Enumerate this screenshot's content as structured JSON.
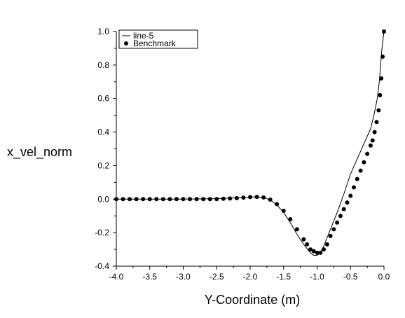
{
  "chart_data": {
    "type": "line",
    "xlabel": "Y-Coordinate (m)",
    "ylabel": "x_vel_norm",
    "xlim": [
      -4.0,
      0.0
    ],
    "ylim": [
      -0.4,
      1.0
    ],
    "xticks": [
      -4.0,
      -3.5,
      -3.0,
      -2.5,
      -2.0,
      -1.5,
      -1.0,
      -0.5,
      0.0
    ],
    "xtick_labels": [
      "-4.0",
      "-3.5",
      "-3.0",
      "-2.5",
      "-2.0",
      "-1.5",
      "-1.0",
      "-0.5",
      "0.0"
    ],
    "yticks": [
      -0.4,
      -0.2,
      0.0,
      0.2,
      0.4,
      0.6,
      0.8,
      1.0
    ],
    "ytick_labels": [
      "-0.4",
      "-0.2",
      "0.0",
      "0.2",
      "0.4",
      "0.6",
      "0.8",
      "1.0"
    ],
    "grid": false,
    "legend_position": "top-left",
    "series": [
      {
        "name": "line-5",
        "kind": "line",
        "color": "#000000",
        "x": [
          -4.0,
          -3.5,
          -3.0,
          -2.5,
          -2.2,
          -2.0,
          -1.9,
          -1.8,
          -1.7,
          -1.6,
          -1.5,
          -1.4,
          -1.3,
          -1.2,
          -1.1,
          -1.05,
          -1.0,
          -0.95,
          -0.9,
          -0.8,
          -0.7,
          -0.6,
          -0.5,
          -0.4,
          -0.3,
          -0.2,
          -0.15,
          -0.1,
          -0.07,
          -0.05,
          -0.03,
          0.0
        ],
        "y": [
          0.0,
          0.0,
          0.0,
          0.003,
          0.008,
          0.012,
          0.013,
          0.01,
          -0.005,
          -0.035,
          -0.08,
          -0.14,
          -0.21,
          -0.27,
          -0.32,
          -0.335,
          -0.335,
          -0.32,
          -0.28,
          -0.18,
          -0.08,
          0.03,
          0.15,
          0.24,
          0.33,
          0.42,
          0.5,
          0.6,
          0.7,
          0.8,
          0.9,
          1.0
        ]
      },
      {
        "name": "Benchmark",
        "kind": "scatter",
        "color": "#000000",
        "x": [
          -4.0,
          -3.9,
          -3.8,
          -3.7,
          -3.6,
          -3.5,
          -3.4,
          -3.3,
          -3.2,
          -3.1,
          -3.0,
          -2.9,
          -2.8,
          -2.7,
          -2.6,
          -2.5,
          -2.4,
          -2.3,
          -2.2,
          -2.1,
          -2.0,
          -1.9,
          -1.8,
          -1.7,
          -1.6,
          -1.5,
          -1.4,
          -1.3,
          -1.2,
          -1.15,
          -1.1,
          -1.05,
          -1.0,
          -0.95,
          -0.9,
          -0.85,
          -0.8,
          -0.75,
          -0.7,
          -0.65,
          -0.6,
          -0.55,
          -0.5,
          -0.45,
          -0.4,
          -0.35,
          -0.3,
          -0.25,
          -0.2,
          -0.17,
          -0.14,
          -0.11,
          -0.08,
          -0.06,
          -0.04,
          -0.02,
          0.0
        ],
        "y": [
          0.0,
          0.0,
          0.0,
          0.0,
          0.0,
          0.0,
          0.0,
          0.0,
          0.0,
          0.0,
          0.0,
          0.0,
          0.0,
          0.0,
          0.0,
          0.0,
          0.002,
          0.004,
          0.006,
          0.009,
          0.012,
          0.013,
          0.01,
          -0.003,
          -0.03,
          -0.07,
          -0.12,
          -0.18,
          -0.24,
          -0.27,
          -0.3,
          -0.31,
          -0.32,
          -0.32,
          -0.3,
          -0.27,
          -0.22,
          -0.18,
          -0.14,
          -0.1,
          -0.06,
          -0.02,
          0.02,
          0.07,
          0.12,
          0.17,
          0.22,
          0.27,
          0.32,
          0.35,
          0.4,
          0.46,
          0.53,
          0.62,
          0.72,
          0.85,
          1.0
        ]
      }
    ]
  }
}
